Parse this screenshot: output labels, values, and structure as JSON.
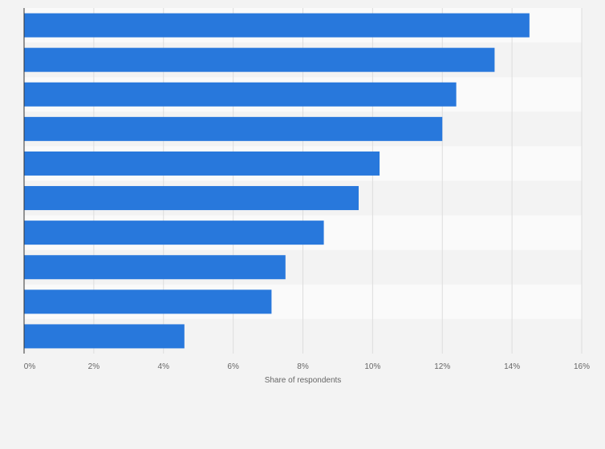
{
  "chart_data": {
    "type": "bar",
    "orientation": "horizontal",
    "title": "",
    "xlabel": "Share of respondents",
    "ylabel": "",
    "xlim": [
      0,
      16
    ],
    "x_ticks": [
      0,
      2,
      4,
      6,
      8,
      10,
      12,
      14,
      16
    ],
    "x_tick_labels": [
      "0%",
      "2%",
      "4%",
      "6%",
      "8%",
      "10%",
      "12%",
      "14%",
      "16%"
    ],
    "categories": [
      "",
      "",
      "",
      "",
      "",
      "",
      "",
      "",
      "",
      ""
    ],
    "values": [
      14.5,
      13.5,
      12.4,
      12.0,
      10.2,
      9.6,
      8.6,
      7.5,
      7.1,
      4.6
    ],
    "grid": true,
    "legend": "none",
    "colors": {
      "bar": "#2878dc",
      "page_background": "#f3f3f3",
      "band_light": "#fafafa",
      "band_dark": "#f3f3f3",
      "gridline": "#dddddd",
      "axis_line": "#333333",
      "text": "#666666"
    }
  }
}
